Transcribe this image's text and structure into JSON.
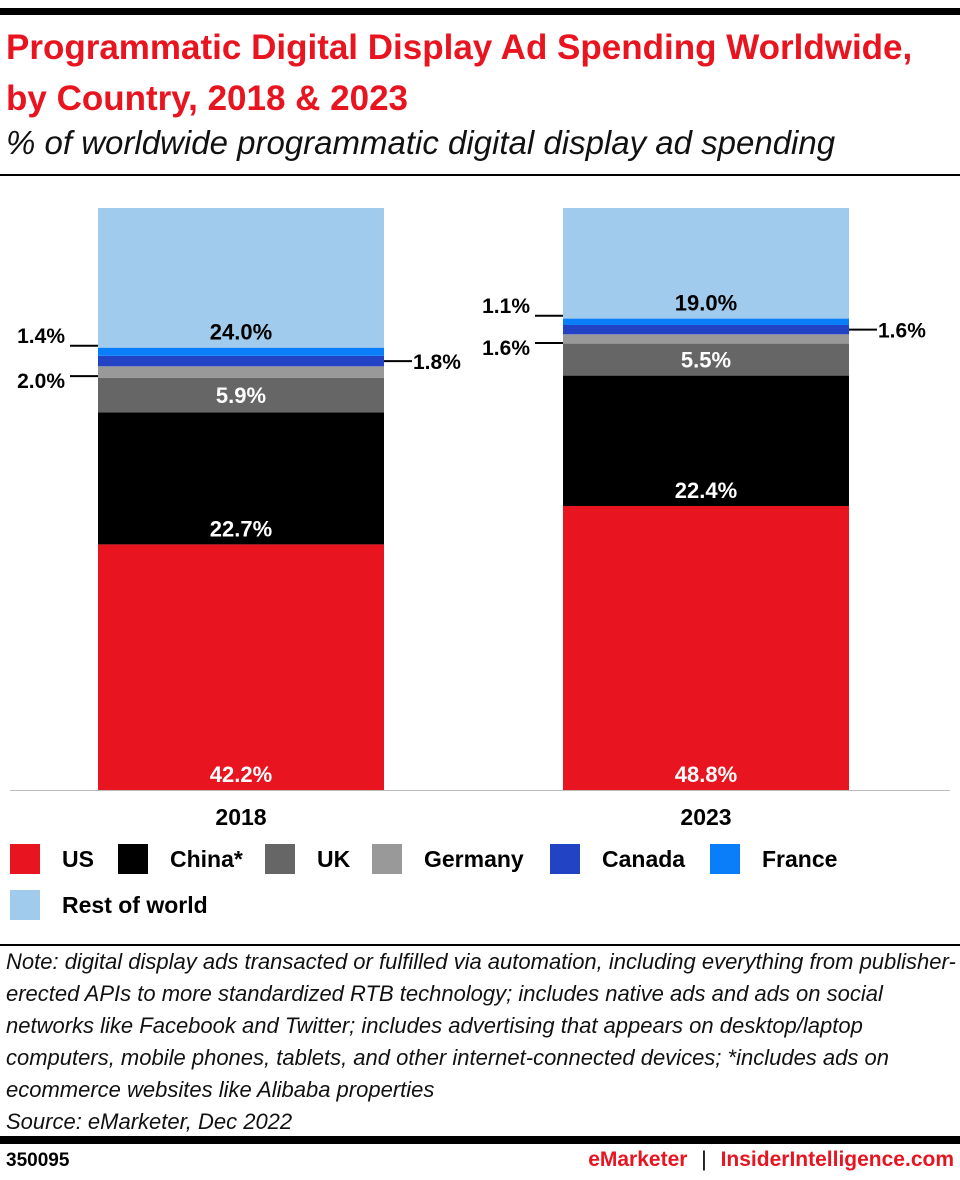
{
  "title": "Programmatic Digital Display Ad Spending Worldwide, by Country, 2018 & 2023",
  "subtitle": "% of worldwide programmatic digital display ad spending",
  "chart_data": {
    "type": "bar",
    "stacked": true,
    "categories": [
      "2018",
      "2023"
    ],
    "ylim": [
      0,
      100
    ],
    "grid": false,
    "legend_placement": "bottom",
    "series": [
      {
        "name": "US",
        "color": "#e8141f",
        "values": [
          42.2,
          48.8
        ],
        "labels": [
          "42.2%",
          "48.8%"
        ]
      },
      {
        "name": "China*",
        "color": "#000000",
        "values": [
          22.7,
          22.4
        ],
        "labels": [
          "22.7%",
          "22.4%"
        ]
      },
      {
        "name": "UK",
        "color": "#666666",
        "values": [
          5.9,
          5.5
        ],
        "labels": [
          "5.9%",
          "5.5%"
        ]
      },
      {
        "name": "Germany",
        "color": "#999999",
        "values": [
          2.0,
          1.6
        ],
        "labels": [
          "2.0%",
          "1.6%"
        ]
      },
      {
        "name": "Canada",
        "color": "#2243c4",
        "values": [
          1.8,
          1.6
        ],
        "labels": [
          "1.8%",
          "1.6%"
        ]
      },
      {
        "name": "France",
        "color": "#0a7ef8",
        "values": [
          1.4,
          1.1
        ],
        "labels": [
          "1.4%",
          "1.1%"
        ]
      },
      {
        "name": "Rest of world",
        "color": "#a0cbed",
        "values": [
          24.0,
          19.0
        ],
        "labels": [
          "24.0%",
          "19.0%"
        ]
      }
    ]
  },
  "note": "Note: digital display ads transacted or fulfilled via automation, including everything from publisher-erected APIs to more standardized RTB technology; includes native ads and ads on social networks like Facebook and Twitter; includes advertising that appears on desktop/laptop computers, mobile phones, tablets, and other internet-connected devices; *includes ads on ecommerce websites like Alibaba properties",
  "source": "Source: eMarketer, Dec 2022",
  "footer": {
    "id": "350095",
    "brand1": "eMarketer",
    "separator": "|",
    "brand2": "InsiderIntelligence.com"
  }
}
